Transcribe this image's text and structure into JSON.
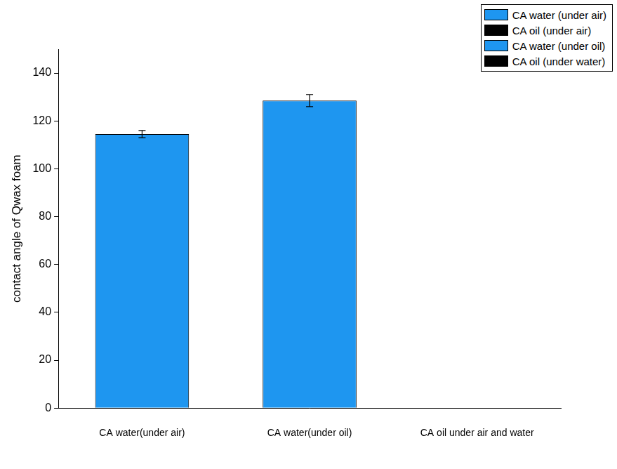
{
  "chart_data": {
    "type": "bar",
    "y_label": "contact angle of Qwax foam",
    "categories": [
      "CA water(under air)",
      "CA water(under oil)",
      "CA oil under air and water"
    ],
    "series": [
      {
        "name": "CA water (under air)",
        "color": "#1e96f0",
        "values": [
          114.5,
          null,
          null
        ],
        "errors": [
          1.5,
          null,
          null
        ]
      },
      {
        "name": "CA oil (under air)",
        "color": "#000000",
        "values": [
          null,
          null,
          0
        ],
        "errors": [
          null,
          null,
          null
        ]
      },
      {
        "name": "CA water (under oil)",
        "color": "#1e96f0",
        "values": [
          null,
          128.5,
          null
        ],
        "errors": [
          null,
          2.5,
          null
        ]
      },
      {
        "name": "CA oil (under water)",
        "color": "#000000",
        "values": [
          null,
          null,
          0
        ],
        "errors": [
          null,
          null,
          null
        ]
      }
    ],
    "ylim": [
      0,
      150
    ],
    "yticks": [
      0,
      20,
      40,
      60,
      80,
      100,
      120,
      140
    ],
    "grid": false,
    "legend": "top-right"
  }
}
